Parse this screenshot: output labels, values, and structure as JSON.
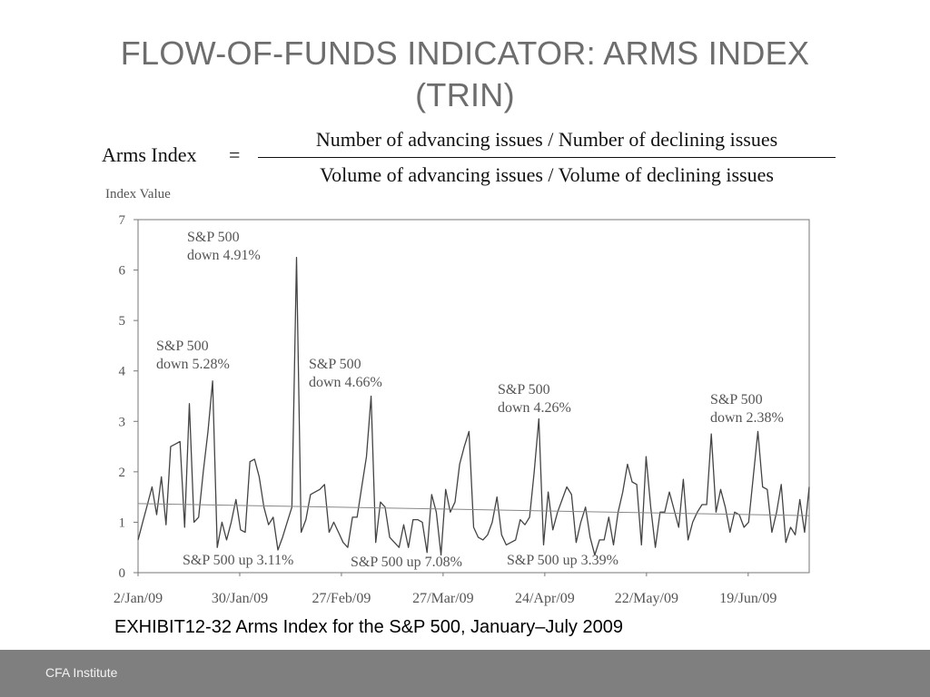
{
  "slide": {
    "title": "FLOW-OF-FUNDS INDICATOR: ARMS INDEX (TRIN)",
    "caption": "EXHIBIT12-32 Arms Index for the S&P 500, January–July 2009",
    "footer": "CFA Institute"
  },
  "formula": {
    "lhs": "Arms Index",
    "equals": "=",
    "numerator": "Number of advancing issues / Number of declining issues",
    "denominator": "Volume of advancing issues / Volume of declining issues"
  },
  "chart_data": {
    "type": "line",
    "ylabel": "Index Value",
    "ylim": [
      0,
      7
    ],
    "yticks": [
      0,
      1,
      2,
      3,
      4,
      5,
      6,
      7
    ],
    "x_tick_labels": [
      "2/Jan/09",
      "30/Jan/09",
      "27/Feb/09",
      "27/Mar/09",
      "24/Apr/09",
      "22/May/09",
      "19/Jun/09"
    ],
    "x_tick_positions": [
      1,
      21,
      41,
      61,
      81,
      101,
      121
    ],
    "x_range": [
      1,
      133
    ],
    "grid": false,
    "series": [
      {
        "values": [
          0.65,
          1.0,
          1.35,
          1.7,
          1.15,
          1.9,
          0.95,
          2.5,
          2.55,
          2.6,
          0.9,
          3.35,
          1.0,
          1.1,
          2.0,
          2.8,
          3.8,
          0.5,
          1.0,
          0.65,
          1.0,
          1.45,
          0.85,
          0.8,
          2.2,
          2.25,
          1.9,
          1.3,
          0.95,
          1.1,
          0.45,
          0.7,
          1.0,
          1.3,
          6.25,
          0.8,
          1.05,
          1.55,
          1.6,
          1.65,
          1.75,
          0.8,
          1.0,
          0.8,
          0.6,
          0.5,
          1.1,
          1.1,
          1.7,
          2.3,
          3.5,
          0.6,
          1.4,
          1.3,
          0.7,
          0.6,
          0.5,
          0.95,
          0.5,
          1.05,
          1.05,
          1.0,
          0.4,
          1.55,
          1.2,
          0.35,
          1.65,
          1.2,
          1.4,
          2.15,
          2.5,
          2.8,
          0.9,
          0.7,
          0.65,
          0.75,
          1.0,
          1.5,
          0.75,
          0.55,
          0.6,
          0.65,
          1.05,
          0.95,
          1.1,
          2.0,
          3.05,
          0.55,
          1.6,
          0.85,
          1.2,
          1.45,
          1.7,
          1.55,
          0.6,
          1.0,
          1.3,
          0.7,
          0.35,
          0.65,
          0.65,
          1.1,
          0.55,
          1.2,
          1.6,
          2.15,
          1.8,
          1.75,
          0.55,
          2.3,
          1.3,
          0.5,
          1.2,
          1.2,
          1.6,
          1.25,
          0.9,
          1.85,
          0.65,
          1.0,
          1.2,
          1.35,
          1.35,
          2.75,
          1.2,
          1.65,
          1.3,
          0.8,
          1.2,
          1.15,
          0.9,
          1.0,
          1.9,
          2.8,
          1.7,
          1.65,
          0.8,
          1.2,
          1.75,
          0.6,
          0.9,
          0.75,
          1.45,
          0.8,
          1.7
        ]
      },
      {
        "type": "trendline",
        "start": 1.37,
        "end": 1.13
      }
    ],
    "annotations": [
      {
        "text": [
          "S&P 500",
          "down 4.91%"
        ],
        "x": 18,
        "y": 6.5
      },
      {
        "text": [
          "S&P 500",
          "down 5.28%"
        ],
        "x": 9,
        "y": 4.35
      },
      {
        "text": [
          "S&P 500",
          "down 4.66%"
        ],
        "x": 45,
        "y": 4.0
      },
      {
        "text": [
          "S&P 500",
          "down 4.26%"
        ],
        "x": 94,
        "y": 3.55
      },
      {
        "text": [
          "S&P 500",
          "down 2.38%"
        ],
        "x": 150,
        "y": 3.35
      },
      {
        "text": [
          "S&P 500 up 3.11%"
        ],
        "x": 26,
        "y": 0.25
      },
      {
        "text": [
          "S&P 500 up 7.08%"
        ],
        "x": 56,
        "y": 0.2
      },
      {
        "text": [
          "S&P 500 up 3.39%"
        ],
        "x": 92,
        "y": 0.2
      }
    ]
  }
}
